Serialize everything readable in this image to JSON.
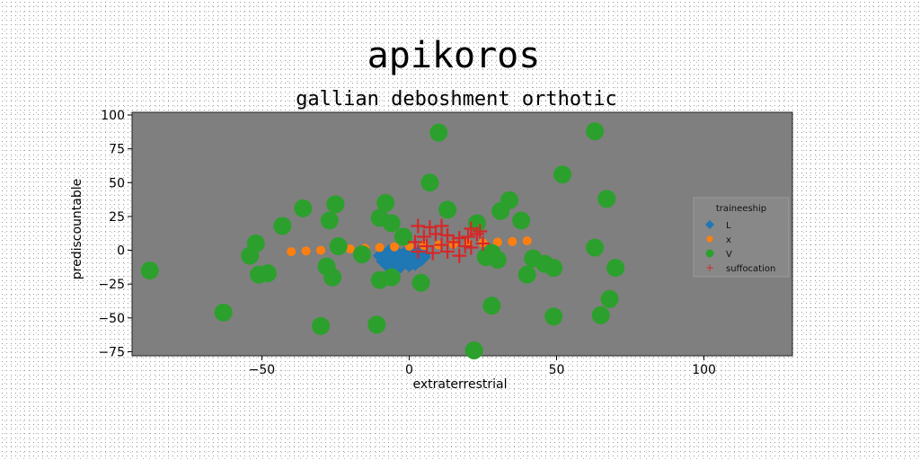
{
  "chart_data": {
    "type": "scatter",
    "title": "apikoros",
    "subtitle": "gallian deboshment orthotic",
    "xlabel": "extraterrestrial",
    "ylabel": "prediscountable",
    "xlim": [
      -94,
      130
    ],
    "ylim": [
      -78,
      102
    ],
    "xticks": [
      -50,
      0,
      50,
      100
    ],
    "yticks": [
      100,
      75,
      50,
      25,
      0,
      -25,
      -50,
      -75
    ],
    "grid": false,
    "legend": {
      "title": "traineeship",
      "position": "right"
    },
    "colors": {
      "plot_bg": "#7f7f7f",
      "L": "#1f77b4",
      "x": "#ff7f0e",
      "V": "#2ca02c",
      "suffocation": "#d62728"
    },
    "series": [
      {
        "name": "L",
        "marker": "diamond",
        "points": [
          [
            -9,
            -4
          ],
          [
            -8,
            -6
          ],
          [
            -7,
            -3
          ],
          [
            -6,
            -7
          ],
          [
            -5,
            -5
          ],
          [
            -4,
            -4
          ],
          [
            -3,
            -8
          ],
          [
            -2,
            -6
          ],
          [
            -1,
            -3
          ],
          [
            0,
            -5
          ],
          [
            1,
            -7
          ],
          [
            2,
            -4
          ],
          [
            3,
            -6
          ],
          [
            4,
            -5
          ],
          [
            -6,
            -9
          ],
          [
            -3,
            -10
          ],
          [
            0,
            -9
          ],
          [
            -8,
            -8
          ],
          [
            2,
            -8
          ],
          [
            4,
            -3
          ]
        ]
      },
      {
        "name": "x",
        "marker": "circle-small",
        "points": [
          [
            -40,
            -1
          ],
          [
            -35,
            -0.5
          ],
          [
            -30,
            0
          ],
          [
            -25,
            0.5
          ],
          [
            -20,
            1
          ],
          [
            -15,
            1.5
          ],
          [
            -10,
            2
          ],
          [
            -5,
            2.5
          ],
          [
            0,
            3
          ],
          [
            5,
            3.5
          ],
          [
            10,
            4
          ],
          [
            15,
            4.5
          ],
          [
            20,
            5
          ],
          [
            25,
            5.5
          ],
          [
            30,
            6
          ],
          [
            35,
            6.5
          ],
          [
            40,
            7
          ]
        ]
      },
      {
        "name": "V",
        "marker": "circle",
        "points": [
          [
            10,
            87
          ],
          [
            63,
            88
          ],
          [
            52,
            56
          ],
          [
            7,
            50
          ],
          [
            67,
            38
          ],
          [
            -36,
            31
          ],
          [
            -25,
            34
          ],
          [
            -8,
            35
          ],
          [
            13,
            30
          ],
          [
            34,
            37
          ],
          [
            31,
            29
          ],
          [
            -27,
            22
          ],
          [
            -10,
            24
          ],
          [
            -6,
            20
          ],
          [
            -43,
            18
          ],
          [
            23,
            20
          ],
          [
            38,
            22
          ],
          [
            -52,
            5
          ],
          [
            -24,
            3
          ],
          [
            -2,
            10
          ],
          [
            -54,
            -4
          ],
          [
            -16,
            -3
          ],
          [
            28,
            -2
          ],
          [
            26,
            -5
          ],
          [
            30,
            -7
          ],
          [
            42,
            -6
          ],
          [
            46,
            -10
          ],
          [
            49,
            -13
          ],
          [
            70,
            -13
          ],
          [
            -88,
            -15
          ],
          [
            -51,
            -18
          ],
          [
            -48,
            -17
          ],
          [
            -28,
            -12
          ],
          [
            -26,
            -20
          ],
          [
            -10,
            -22
          ],
          [
            -6,
            -20
          ],
          [
            4,
            -24
          ],
          [
            40,
            -18
          ],
          [
            63,
            2
          ],
          [
            -63,
            -46
          ],
          [
            -30,
            -56
          ],
          [
            -11,
            -55
          ],
          [
            28,
            -41
          ],
          [
            49,
            -49
          ],
          [
            65,
            -48
          ],
          [
            68,
            -36
          ],
          [
            22,
            -74
          ]
        ]
      },
      {
        "name": "suffocation",
        "marker": "plus",
        "points": [
          [
            3,
            18
          ],
          [
            7,
            17
          ],
          [
            11,
            18
          ],
          [
            21,
            16
          ],
          [
            24,
            14
          ],
          [
            2,
            6
          ],
          [
            5,
            10
          ],
          [
            9,
            12
          ],
          [
            13,
            11
          ],
          [
            17,
            9
          ],
          [
            20,
            10
          ],
          [
            23,
            12
          ],
          [
            6,
            3
          ],
          [
            11,
            4
          ],
          [
            15,
            6
          ],
          [
            19,
            3
          ],
          [
            25,
            5
          ],
          [
            8,
            -2
          ],
          [
            13,
            -1
          ],
          [
            17,
            -4
          ],
          [
            21,
            2
          ],
          [
            3,
            -1
          ]
        ]
      }
    ]
  }
}
